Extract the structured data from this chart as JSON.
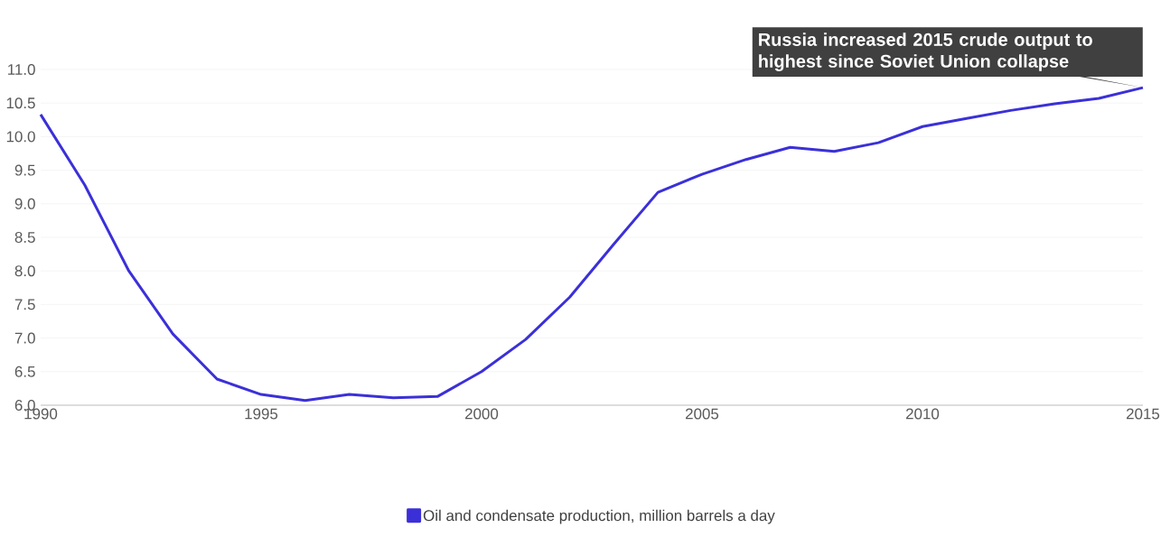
{
  "chart_data": {
    "type": "line",
    "x": [
      1990,
      1991,
      1992,
      1993,
      1994,
      1995,
      1996,
      1997,
      1998,
      1999,
      2000,
      2001,
      2002,
      2003,
      2004,
      2005,
      2006,
      2007,
      2008,
      2009,
      2010,
      2011,
      2012,
      2013,
      2014,
      2015
    ],
    "series": [
      {
        "name": "Oil and condensate production, million barrels a day",
        "color": "#3b30d8",
        "values": [
          10.33,
          9.28,
          8.0,
          7.06,
          6.39,
          6.16,
          6.07,
          6.16,
          6.11,
          6.13,
          6.5,
          6.98,
          7.61,
          8.4,
          9.17,
          9.44,
          9.66,
          9.84,
          9.78,
          9.91,
          10.15,
          10.27,
          10.39,
          10.49,
          10.57,
          10.73
        ]
      }
    ],
    "xlim": [
      1990,
      2015
    ],
    "ylim": [
      6.0,
      11.0
    ],
    "xticks": [
      1990,
      1995,
      2000,
      2005,
      2010,
      2015
    ],
    "yticks": [
      {
        "value": 6.0,
        "label": "6.0"
      },
      {
        "value": 6.5,
        "label": "6.5"
      },
      {
        "value": 7.0,
        "label": "7.0"
      },
      {
        "value": 7.5,
        "label": "7.5"
      },
      {
        "value": 8.0,
        "label": "8.0"
      },
      {
        "value": 8.5,
        "label": "8.5"
      },
      {
        "value": 9.0,
        "label": "9.0"
      },
      {
        "value": 9.5,
        "label": "9.5"
      },
      {
        "value": 10.0,
        "label": "10.0"
      },
      {
        "value": 10.5,
        "label": "10.5"
      },
      {
        "value": 11.0,
        "label": "11.0"
      }
    ],
    "annotations": [
      {
        "text": "Russia increased 2015 crude output to highest since Soviet Union collapse",
        "x": 2015,
        "y": 10.73
      }
    ],
    "grid": "y",
    "legend": "bottom",
    "marker": "none",
    "line_style": "solid"
  }
}
